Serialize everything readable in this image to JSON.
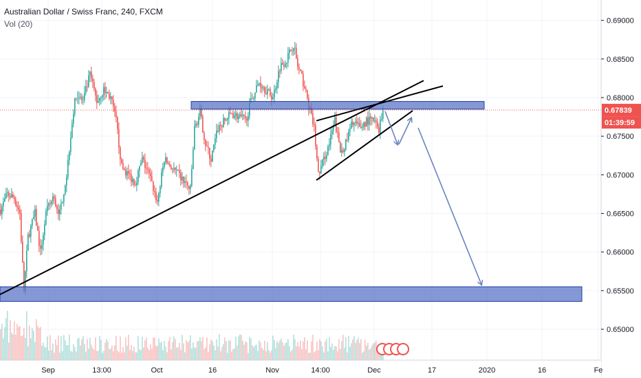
{
  "header": {
    "title": "Australian Dollar / Swiss Franc, 240, FXCM",
    "volume_label": "Vol (20)"
  },
  "colors": {
    "up": "#26a69a",
    "down": "#ef5350",
    "zone_fill": "#5b76c8",
    "zone_stroke": "#1f3c9a",
    "arrow": "#6a83bd",
    "badge_price": "#ef5350",
    "badge_timer": "#ef5350",
    "grid": "#f0f3fa",
    "line": "#000000"
  },
  "chart_data": {
    "type": "candlestick",
    "symbol": "AUDCHF",
    "timeframe": "240",
    "source": "FXCM",
    "y_range": [
      0.646,
      0.6935
    ],
    "y_ticks": [
      "0.69000",
      "0.68500",
      "0.68000",
      "0.67500",
      "0.67000",
      "0.66500",
      "0.66000",
      "0.65500",
      "0.65000"
    ],
    "y_tick_values": [
      0.69,
      0.685,
      0.68,
      0.675,
      0.67,
      0.665,
      0.66,
      0.655,
      0.65
    ],
    "x_ticks": [
      "Sep",
      "13:00",
      "Oct",
      "16",
      "Nov",
      "14:00",
      "Dec",
      "17",
      "2020",
      "16",
      "Fe"
    ],
    "last_price": "0.67839",
    "last_price_value": 0.67839,
    "countdown": "01:39:59",
    "price_path": [
      [
        0,
        0.6655
      ],
      [
        10,
        0.6675
      ],
      [
        20,
        0.667
      ],
      [
        28,
        0.665
      ],
      [
        34,
        0.655
      ],
      [
        40,
        0.662
      ],
      [
        50,
        0.665
      ],
      [
        58,
        0.66
      ],
      [
        66,
        0.665
      ],
      [
        76,
        0.667
      ],
      [
        86,
        0.665
      ],
      [
        96,
        0.67
      ],
      [
        104,
        0.677
      ],
      [
        110,
        0.6805
      ],
      [
        120,
        0.6795
      ],
      [
        130,
        0.683
      ],
      [
        140,
        0.6795
      ],
      [
        150,
        0.681
      ],
      [
        160,
        0.68
      ],
      [
        168,
        0.677
      ],
      [
        176,
        0.671
      ],
      [
        186,
        0.67
      ],
      [
        196,
        0.669
      ],
      [
        206,
        0.672
      ],
      [
        216,
        0.67
      ],
      [
        228,
        0.6665
      ],
      [
        238,
        0.672
      ],
      [
        248,
        0.671
      ],
      [
        258,
        0.67
      ],
      [
        268,
        0.669
      ],
      [
        276,
        0.668
      ],
      [
        282,
        0.676
      ],
      [
        290,
        0.678
      ],
      [
        298,
        0.674
      ],
      [
        306,
        0.672
      ],
      [
        316,
        0.676
      ],
      [
        326,
        0.677
      ],
      [
        336,
        0.678
      ],
      [
        346,
        0.6775
      ],
      [
        356,
        0.677
      ],
      [
        366,
        0.68
      ],
      [
        376,
        0.682
      ],
      [
        386,
        0.681
      ],
      [
        396,
        0.68
      ],
      [
        406,
        0.684
      ],
      [
        416,
        0.685
      ],
      [
        426,
        0.687
      ],
      [
        432,
        0.684
      ],
      [
        440,
        0.682
      ],
      [
        448,
        0.679
      ],
      [
        456,
        0.676
      ],
      [
        462,
        0.67
      ],
      [
        470,
        0.672
      ],
      [
        478,
        0.674
      ],
      [
        486,
        0.677
      ],
      [
        494,
        0.673
      ],
      [
        502,
        0.674
      ],
      [
        512,
        0.677
      ],
      [
        522,
        0.676
      ],
      [
        532,
        0.677
      ],
      [
        542,
        0.677
      ],
      [
        550,
        0.676
      ],
      [
        556,
        0.6784
      ]
    ],
    "annotations": {
      "resistance_zone": {
        "y_top": 0.6795,
        "y_bottom": 0.6785,
        "x_start": 278,
        "x_end": 704
      },
      "support_zone": {
        "y_top": 0.6555,
        "y_bottom": 0.6536,
        "x_start": 0,
        "x_end": 846
      },
      "trendline_long": {
        "from": [
          0,
          0.6545
        ],
        "to": [
          616,
          0.6822
        ]
      },
      "trendline_wedge_upper": {
        "from": [
          460,
          0.677
        ],
        "to": [
          644,
          0.6815
        ]
      },
      "trendline_wedge_lower": {
        "from": [
          460,
          0.6693
        ],
        "to": [
          600,
          0.6783
        ]
      }
    }
  }
}
